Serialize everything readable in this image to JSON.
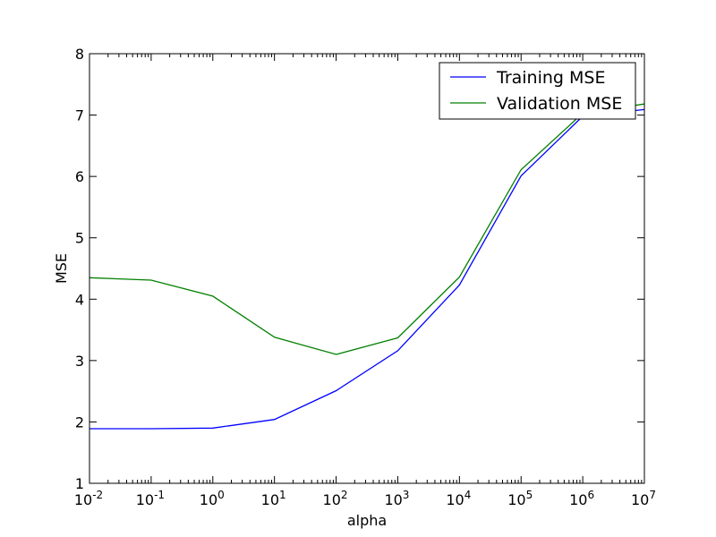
{
  "chart_data": {
    "type": "line",
    "xlabel": "alpha",
    "ylabel": "MSE",
    "xscale": "log",
    "xlim": [
      0.01,
      10000000
    ],
    "ylim": [
      1,
      8
    ],
    "x": [
      0.01,
      0.1,
      1,
      10,
      100,
      1000,
      10000,
      100000,
      1000000,
      10000000
    ],
    "x_ticks": [
      {
        "base": "10",
        "exp": "-2",
        "value": 0.01
      },
      {
        "base": "10",
        "exp": "-1",
        "value": 0.1
      },
      {
        "base": "10",
        "exp": "0",
        "value": 1
      },
      {
        "base": "10",
        "exp": "1",
        "value": 10
      },
      {
        "base": "10",
        "exp": "2",
        "value": 100
      },
      {
        "base": "10",
        "exp": "3",
        "value": 1000
      },
      {
        "base": "10",
        "exp": "4",
        "value": 10000
      },
      {
        "base": "10",
        "exp": "5",
        "value": 100000
      },
      {
        "base": "10",
        "exp": "6",
        "value": 1000000
      },
      {
        "base": "10",
        "exp": "7",
        "value": 10000000
      }
    ],
    "y_ticks": [
      1,
      2,
      3,
      4,
      5,
      6,
      7,
      8
    ],
    "y_tick_labels": [
      "1",
      "2",
      "3",
      "4",
      "5",
      "6",
      "7",
      "8"
    ],
    "series": [
      {
        "name": "Training MSE",
        "color": "#0000ff",
        "values": [
          1.89,
          1.89,
          1.9,
          2.04,
          2.51,
          3.16,
          4.23,
          6.01,
          6.98,
          7.09
        ]
      },
      {
        "name": "Validation MSE",
        "color": "#008000",
        "values": [
          4.35,
          4.31,
          4.05,
          3.38,
          3.1,
          3.37,
          4.36,
          6.11,
          7.03,
          7.18
        ]
      }
    ],
    "legend": "top-right",
    "grid": false
  }
}
